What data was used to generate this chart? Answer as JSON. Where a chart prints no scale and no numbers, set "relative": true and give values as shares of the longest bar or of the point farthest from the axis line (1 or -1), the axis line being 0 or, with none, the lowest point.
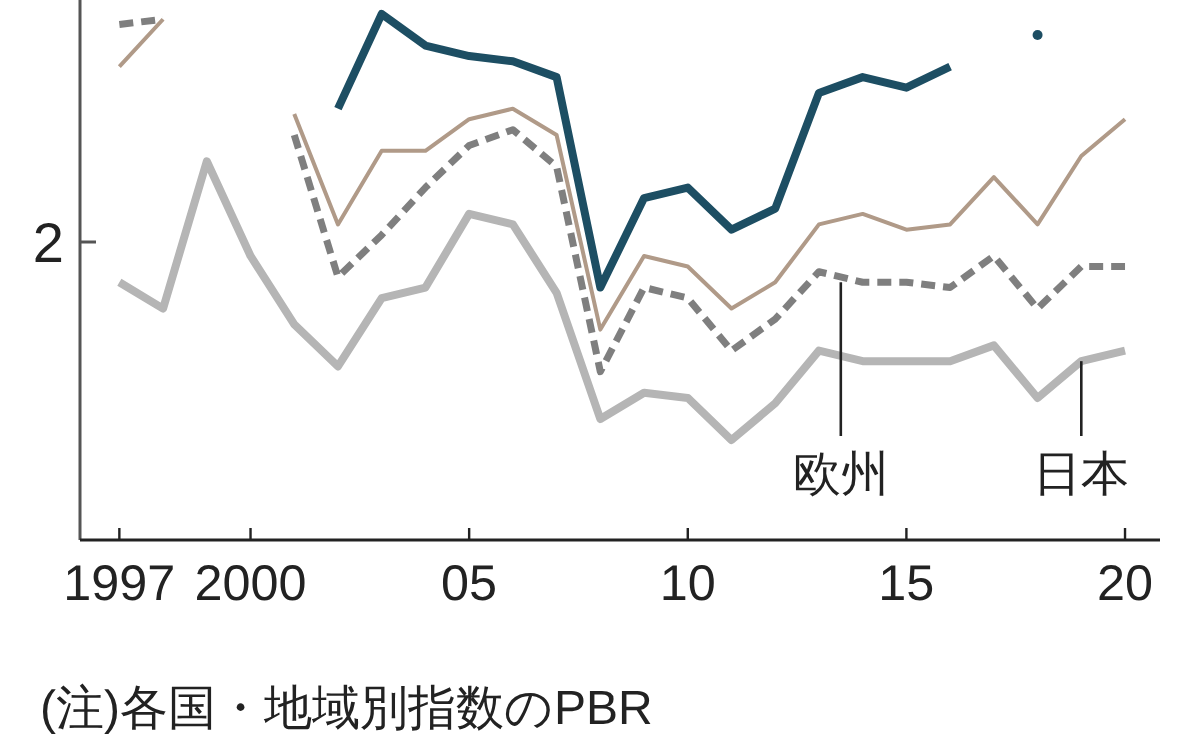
{
  "chart_data": {
    "type": "line",
    "relative": true,
    "grid": false,
    "x": [
      1997,
      1998,
      1999,
      2000,
      2001,
      2002,
      2003,
      2004,
      2005,
      2006,
      2007,
      2008,
      2009,
      2010,
      2011,
      2012,
      2013,
      2014,
      2015,
      2016,
      2017,
      2018,
      2019,
      2020
    ],
    "xlim": [
      1996.1,
      2020.8
    ],
    "xticks": [
      {
        "value": 1997,
        "label": "1997"
      },
      {
        "value": 2000,
        "label": "2000"
      },
      {
        "value": 2005,
        "label": "05"
      },
      {
        "value": 2010,
        "label": "10"
      },
      {
        "value": 2015,
        "label": "15"
      },
      {
        "value": 2020,
        "label": "20"
      }
    ],
    "series": [
      {
        "color": "#b5b5b5",
        "line_style": "solid",
        "values": [
          0.49,
          0.44,
          0.72,
          0.54,
          0.41,
          0.33,
          0.46,
          0.48,
          0.62,
          0.6,
          0.47,
          0.23,
          0.28,
          0.27,
          0.19,
          0.26,
          0.36,
          0.34,
          0.34,
          0.34,
          0.37,
          0.27,
          0.34,
          0.36
        ]
      },
      {
        "color": "#b09a88",
        "line_style": "solid",
        "values": [
          0.9,
          0.99,
          null,
          null,
          0.81,
          0.6,
          0.74,
          0.74,
          0.8,
          0.82,
          0.77,
          0.4,
          0.54,
          0.52,
          0.44,
          0.49,
          0.6,
          0.62,
          0.59,
          0.6,
          0.69,
          0.6,
          0.73,
          0.8
        ]
      },
      {
        "color": "#7f7f7f",
        "line_style": "dashed",
        "values": [
          0.98,
          0.99,
          null,
          null,
          0.77,
          0.5,
          0.58,
          0.67,
          0.75,
          0.78,
          0.71,
          0.32,
          0.48,
          0.46,
          0.36,
          0.42,
          0.51,
          0.49,
          0.49,
          0.48,
          0.54,
          0.44,
          0.52,
          0.52
        ]
      },
      {
        "color": "#1d4e63",
        "line_style": "solid",
        "values": [
          null,
          null,
          null,
          null,
          null,
          0.82,
          1.0,
          0.94,
          0.92,
          0.91,
          0.88,
          0.48,
          0.65,
          0.67,
          0.59,
          0.63,
          0.85,
          0.88,
          0.86,
          0.9,
          null,
          0.96,
          null,
          null
        ]
      }
    ],
    "annotations": [
      "2",
      {
        "text": "欧州",
        "x": 2013.5,
        "y": 0.49
      },
      {
        "text": "日本",
        "x": 2019,
        "y": 0.34
      },
      "(注)各国・地域別指数のPBR"
    ]
  }
}
